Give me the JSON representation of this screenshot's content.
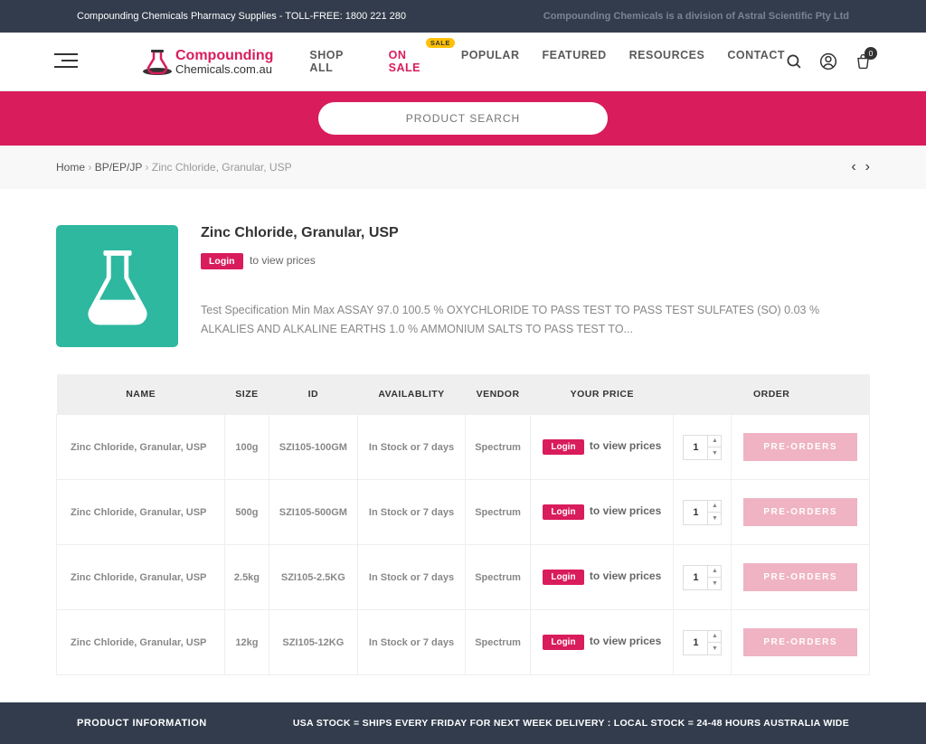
{
  "topbar": {
    "left": "Compounding Chemicals Pharmacy Supplies - TOLL-FREE: 1800 221 280",
    "right": "Compounding Chemicals is a division of Astral Scientific Pty Ltd"
  },
  "logo": {
    "line1": "Compounding",
    "line2": "Chemicals.com.au"
  },
  "nav": {
    "items": [
      "SHOP ALL",
      "ON SALE",
      "POPULAR",
      "FEATURED",
      "RESOURCES",
      "CONTACT"
    ],
    "sale_badge": "SALE"
  },
  "cart_count": "0",
  "search": {
    "placeholder": "PRODUCT SEARCH"
  },
  "breadcrumb": {
    "home": "Home",
    "cat": "BP/EP/JP",
    "current": "Zinc Chloride, Granular, USP"
  },
  "product": {
    "title": "Zinc Chloride, Granular, USP",
    "login_label": "Login",
    "login_note": "to view prices",
    "description": "Test Specification Min Max ASSAY 97.0 100.5 % OXYCHLORIDE TO PASS TEST TO PASS TEST SULFATES (SO) 0.03 % ALKALIES AND ALKALINE EARTHS 1.0 % AMMONIUM SALTS TO PASS TEST TO..."
  },
  "table": {
    "headers": [
      "NAME",
      "SIZE",
      "ID",
      "AVAILABLITY",
      "VENDOR",
      "YOUR PRICE",
      "",
      "ORDER"
    ],
    "login_label": "Login",
    "login_note": "to view prices",
    "preorder_label": "PRE-ORDERS",
    "rows": [
      {
        "name": "Zinc Chloride, Granular, USP",
        "size": "100g",
        "id": "SZI105-100GM",
        "avail": "In Stock or 7 days",
        "vendor": "Spectrum",
        "qty": "1"
      },
      {
        "name": "Zinc Chloride, Granular, USP",
        "size": "500g",
        "id": "SZI105-500GM",
        "avail": "In Stock or 7 days",
        "vendor": "Spectrum",
        "qty": "1"
      },
      {
        "name": "Zinc Chloride, Granular, USP",
        "size": "2.5kg",
        "id": "SZI105-2.5KG",
        "avail": "In Stock or 7 days",
        "vendor": "Spectrum",
        "qty": "1"
      },
      {
        "name": "Zinc Chloride, Granular, USP",
        "size": "12kg",
        "id": "SZI105-12KG",
        "avail": "In Stock or 7 days",
        "vendor": "Spectrum",
        "qty": "1"
      }
    ]
  },
  "footer": {
    "left": "PRODUCT INFORMATION",
    "right": "USA STOCK = SHIPS EVERY FRIDAY FOR NEXT WEEK DELIVERY : LOCAL STOCK = 24-48 HOURS AUSTRALIA WIDE"
  }
}
